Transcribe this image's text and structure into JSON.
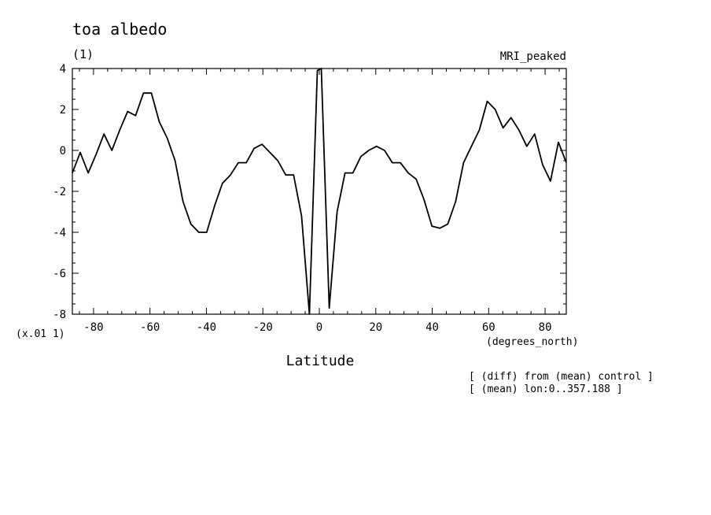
{
  "chart_data": {
    "type": "line",
    "title": "toa albedo",
    "subtitle": "(1)",
    "legend_label": "MRI_peaked",
    "xlabel": "Latitude",
    "xunits": "(degrees_north)",
    "yscale_label": "(x.01 1)",
    "notes": [
      "[ (diff) from (mean) control ]",
      "[ (mean) lon:0..357.188 ]"
    ],
    "xlim": [
      -87.5,
      87.5
    ],
    "ylim": [
      -8,
      4
    ],
    "xticks": [
      -80,
      -60,
      -40,
      -20,
      0,
      20,
      40,
      60,
      80
    ],
    "xtick_labels": [
      "-80",
      "-60",
      "-40",
      "-20",
      "0",
      "20",
      "40",
      "60",
      "80"
    ],
    "yticks": [
      -8,
      -6,
      -4,
      -2,
      0,
      2,
      4
    ],
    "ytick_labels": [
      "-8",
      "-6",
      "-4",
      "-2",
      "0",
      "2",
      "4"
    ],
    "grid": false,
    "series": [
      {
        "x": [
          -87.5,
          -84.7,
          -81.9,
          -79.1,
          -76.3,
          -73.5,
          -70.7,
          -67.9,
          -65.1,
          -62.3,
          -59.5,
          -56.7,
          -53.9,
          -51.1,
          -48.3,
          -45.5,
          -42.7,
          -39.9,
          -37.1,
          -34.3,
          -31.5,
          -28.7,
          -25.9,
          -23.1,
          -20.3,
          -17.5,
          -14.7,
          -11.9,
          -9.1,
          -6.3,
          -3.5,
          -0.7,
          0.7,
          3.5,
          6.3,
          9.1,
          11.9,
          14.7,
          17.5,
          20.3,
          23.1,
          25.9,
          28.7,
          31.5,
          34.3,
          37.1,
          39.9,
          42.7,
          45.5,
          48.3,
          51.1,
          53.9,
          56.7,
          59.5,
          62.3,
          65.1,
          67.9,
          70.7,
          73.5,
          76.3,
          79.1,
          81.9,
          84.7,
          87.5
        ],
        "y": [
          -1.1,
          -0.1,
          -1.1,
          -0.2,
          0.8,
          0.0,
          1.0,
          1.9,
          1.7,
          2.8,
          2.8,
          1.4,
          0.6,
          -0.5,
          -2.5,
          -3.6,
          -4.0,
          -4.0,
          -2.7,
          -1.6,
          -1.2,
          -0.6,
          -0.6,
          0.1,
          0.3,
          -0.1,
          -0.5,
          -1.2,
          -1.2,
          -3.2,
          -8.0,
          3.9,
          4.0,
          -7.7,
          -3.0,
          -1.1,
          -1.1,
          -0.3,
          0.0,
          0.2,
          0.0,
          -0.6,
          -0.6,
          -1.1,
          -1.4,
          -2.4,
          -3.7,
          -3.8,
          -3.6,
          -2.5,
          -0.6,
          0.2,
          1.0,
          2.4,
          2.0,
          1.1,
          1.6,
          1.0,
          0.2,
          0.8,
          -0.7,
          -1.5,
          0.4,
          -0.6
        ]
      }
    ]
  }
}
